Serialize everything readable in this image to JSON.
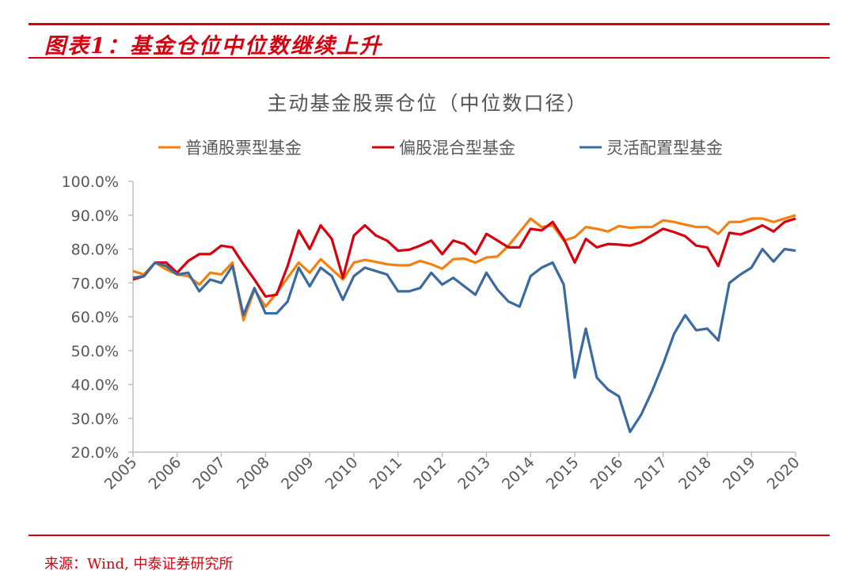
{
  "header": {
    "title": "图表1：基金仓位中位数继续上升"
  },
  "footer": {
    "source": "来源：Wind, 中泰证券研究所"
  },
  "chart_data": {
    "type": "line",
    "title": "主动基金股票仓位（中位数口径）",
    "legend_position": "top",
    "ylim": [
      20,
      100
    ],
    "yticks": [
      "100.0%",
      "90.0%",
      "80.0%",
      "70.0%",
      "60.0%",
      "50.0%",
      "40.0%",
      "30.0%",
      "20.0%"
    ],
    "ytick_values": [
      100,
      90,
      80,
      70,
      60,
      50,
      40,
      30,
      20
    ],
    "xticks": [
      "2005",
      "2006",
      "2007",
      "2008",
      "2009",
      "2010",
      "2011",
      "2012",
      "2013",
      "2014",
      "2015",
      "2016",
      "2017",
      "2018",
      "2019",
      "2020"
    ],
    "xlim": [
      2005,
      2020
    ],
    "x_start": 2005,
    "x_step": 0.25,
    "grid": false,
    "series": [
      {
        "name": "普通股票型基金",
        "color": "#f57f0f",
        "values": [
          73.5,
          72.5,
          76,
          74,
          72.5,
          72,
          69.5,
          73,
          72.5,
          76,
          59,
          68,
          63,
          67,
          71.5,
          76,
          73,
          77,
          74,
          71,
          76,
          76.8,
          76.2,
          75.5,
          75.2,
          75.2,
          76.5,
          75.5,
          74.2,
          77,
          77.2,
          76,
          77.5,
          77.8,
          81,
          85,
          89,
          86.5,
          87,
          82.5,
          83.5,
          86.5,
          86,
          85.2,
          86.8,
          86.3,
          86.5,
          86.5,
          88.5,
          88,
          87.2,
          86.5,
          86.5,
          84.5,
          88,
          88,
          89,
          89,
          88,
          89,
          90
        ]
      },
      {
        "name": "偏股混合型基金",
        "color": "#d7000f",
        "values": [
          71,
          72,
          76,
          76,
          73,
          76.5,
          78.5,
          78.5,
          81,
          80.5,
          75.5,
          71,
          66,
          66.5,
          75,
          85.5,
          80,
          87,
          83,
          71.5,
          84,
          87,
          84,
          82.5,
          79.5,
          79.8,
          81,
          82.5,
          78.5,
          82.5,
          81.5,
          78.5,
          84.5,
          82.5,
          80.5,
          80.5,
          86,
          85.5,
          88,
          83,
          76,
          83,
          80.5,
          81.5,
          81.3,
          81,
          82,
          84,
          86,
          85,
          83.8,
          81,
          80.5,
          75,
          84.8,
          84.3,
          85.5,
          87,
          85.2,
          88,
          89
        ]
      },
      {
        "name": "灵活配置型基金",
        "color": "#3b6aa0",
        "values": [
          71.5,
          72,
          76,
          75,
          72.5,
          73,
          67.5,
          71,
          70,
          75,
          60.5,
          68.5,
          61,
          61,
          64.5,
          74.5,
          69,
          74.5,
          72,
          65,
          72,
          74.5,
          73.5,
          72.5,
          67.5,
          67.5,
          68.5,
          73,
          69.5,
          71.5,
          69,
          66.5,
          73,
          68,
          64.5,
          63,
          72,
          74.5,
          76,
          69.5,
          42,
          56.5,
          42,
          38.5,
          36.5,
          26,
          31,
          38,
          46,
          55,
          60.5,
          56,
          56.5,
          53,
          70,
          72.5,
          74.5,
          80,
          76.3,
          80,
          79.5
        ]
      }
    ]
  }
}
